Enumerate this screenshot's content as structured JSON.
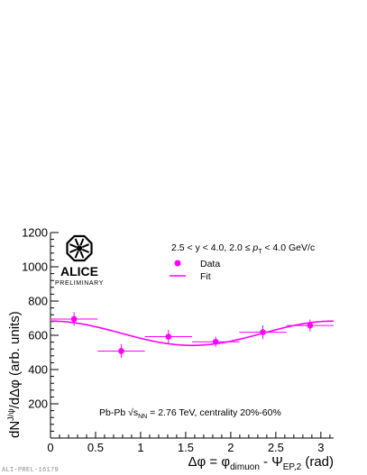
{
  "chart_data": {
    "type": "scatter",
    "xlabel_parts": {
      "main": "Δφ = φ",
      "sub1": "dimuon",
      "mid": " - Ψ",
      "sub2": "EP,2",
      "tail": " (rad)"
    },
    "ylabel_parts": {
      "pre": "dN",
      "sup": "J/ψ",
      "post": "/dΔφ (arb. units)"
    },
    "xlim": [
      0,
      3.14159
    ],
    "ylim": [
      0,
      1200
    ],
    "x_ticks": [
      "0",
      "0.5",
      "1",
      "1.5",
      "2",
      "2.5",
      "3"
    ],
    "x_tick_values": [
      0,
      0.5,
      1,
      1.5,
      2,
      2.5,
      3
    ],
    "y_ticks": [
      "200",
      "400",
      "600",
      "800",
      "1000",
      "1200"
    ],
    "y_tick_values": [
      200,
      400,
      600,
      800,
      1000,
      1200
    ],
    "series": [
      {
        "name": "Data",
        "color": "#ff00ff",
        "points": [
          {
            "x": 0.2618,
            "y": 695,
            "xerr": 0.2618,
            "yerr": 40
          },
          {
            "x": 0.7854,
            "y": 508,
            "xerr": 0.2618,
            "yerr": 40
          },
          {
            "x": 1.309,
            "y": 592,
            "xerr": 0.2618,
            "yerr": 40
          },
          {
            "x": 1.8326,
            "y": 562,
            "xerr": 0.2618,
            "yerr": 30
          },
          {
            "x": 2.3562,
            "y": 618,
            "xerr": 0.2618,
            "yerr": 40
          },
          {
            "x": 2.8798,
            "y": 657,
            "xerr": 0.2618,
            "yerr": 35
          }
        ]
      },
      {
        "name": "Fit",
        "color": "#ff00ff",
        "function": "A*(1+2*v2*cos(2x))",
        "A": 612,
        "v2": 0.058
      }
    ],
    "legend": {
      "position": "top-right",
      "entries": [
        "Data",
        "Fit"
      ]
    },
    "annotations": {
      "kinematics_pre": "2.5 < y < 4.0, 2.0 ≤ ",
      "kinematics_p": "p",
      "kinematics_sub": "T",
      "kinematics_post": " < 4.0 GeV/c",
      "system_pre": "Pb-Pb ",
      "system_sqrt": "√s",
      "system_sub": "NN",
      "system_post": " = 2.76 TeV, centrality 20%-60%"
    },
    "grid": false
  },
  "logo": {
    "name": "ALICE",
    "subtitle": "PRELIMINARY"
  },
  "watermark": "ALI-PREL-16179"
}
